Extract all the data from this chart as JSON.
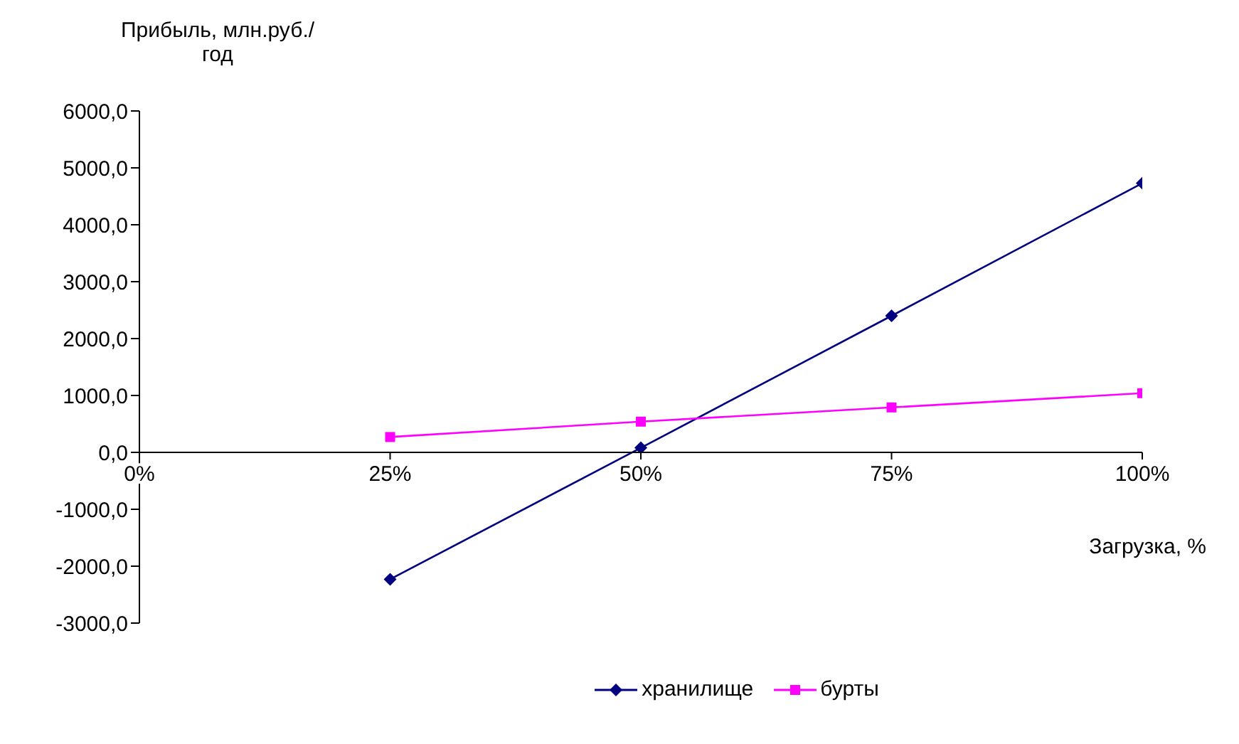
{
  "chart_data": {
    "type": "line",
    "ylabel": "Прибыль, млн.руб./год",
    "xlabel": "Загрузка, %",
    "x": [
      25,
      50,
      75,
      100
    ],
    "series": [
      {
        "name": "хранилище",
        "color": "#000080",
        "marker": "diamond",
        "values": [
          -2230,
          80,
          2400,
          4730
        ]
      },
      {
        "name": "бурты",
        "color": "#ff00ff",
        "marker": "square",
        "values": [
          270,
          540,
          790,
          1040
        ]
      }
    ],
    "xlim": [
      0,
      100
    ],
    "xticks": [
      {
        "value": 0,
        "label": "0%"
      },
      {
        "value": 25,
        "label": "25%"
      },
      {
        "value": 50,
        "label": "50%"
      },
      {
        "value": 75,
        "label": "75%"
      },
      {
        "value": 100,
        "label": "100%"
      }
    ],
    "ylim": [
      -3000,
      6000
    ],
    "yticks": [
      {
        "value": -3000,
        "label": "-3000,0"
      },
      {
        "value": -2000,
        "label": "-2000,0"
      },
      {
        "value": -1000,
        "label": "-1000,0"
      },
      {
        "value": 0,
        "label": "0,0"
      },
      {
        "value": 1000,
        "label": "1000,0"
      },
      {
        "value": 2000,
        "label": "2000,0"
      },
      {
        "value": 3000,
        "label": "3000,0"
      },
      {
        "value": 4000,
        "label": "4000,0"
      },
      {
        "value": 5000,
        "label": "5000,0"
      },
      {
        "value": 6000,
        "label": "6000,0"
      }
    ],
    "grid": false,
    "legend": "bottom",
    "line_style": "solid"
  }
}
